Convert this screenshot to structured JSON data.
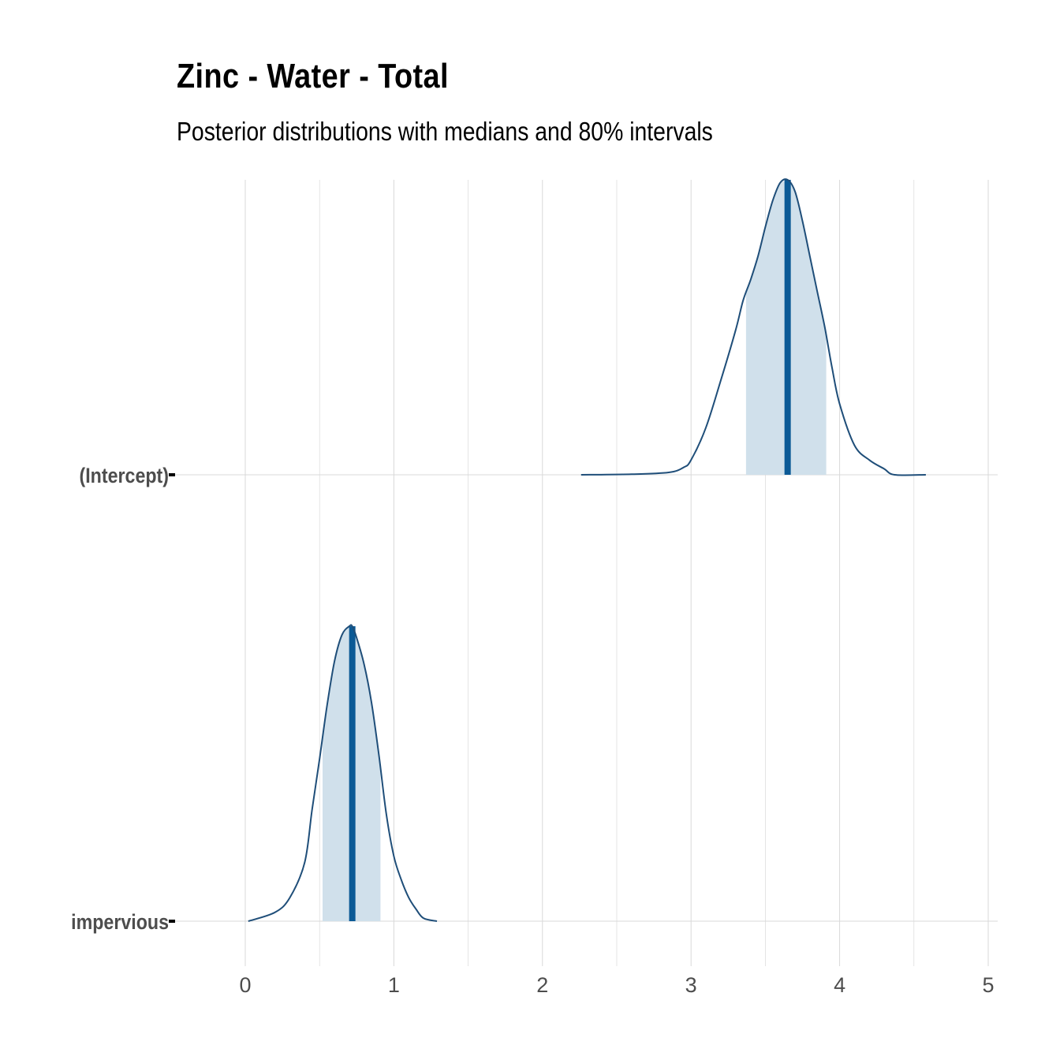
{
  "title": "Zinc - Water - Total",
  "subtitle": "Posterior distributions with medians and 80% intervals",
  "colors": {
    "outline": "#1f4e79",
    "median": "#0b5a96",
    "interval_fill": "#d0e0eb",
    "grid": "#d9d9d9",
    "tick_text": "#4d4d4d"
  },
  "chart_data": {
    "type": "area",
    "title": "Zinc - Water - Total",
    "subtitle": "Posterior distributions with medians and 80% intervals",
    "xlabel": "",
    "ylabel": "",
    "xlim": [
      0,
      5
    ],
    "x_ticks": [
      0,
      1,
      2,
      3,
      4,
      5
    ],
    "grid": true,
    "parameters": [
      {
        "name": "(Intercept)",
        "median": 3.65,
        "interval80": [
          3.37,
          3.91
        ],
        "density": {
          "x": [
            2.26,
            2.6,
            2.85,
            2.95,
            3.0,
            3.1,
            3.2,
            3.3,
            3.35,
            3.4,
            3.45,
            3.5,
            3.55,
            3.6,
            3.65,
            3.7,
            3.75,
            3.8,
            3.85,
            3.9,
            3.95,
            4.0,
            4.1,
            4.2,
            4.3,
            4.37,
            4.58
          ],
          "y": [
            0.0,
            0.002,
            0.008,
            0.025,
            0.05,
            0.16,
            0.32,
            0.49,
            0.59,
            0.66,
            0.74,
            0.84,
            0.93,
            0.99,
            1.0,
            0.96,
            0.86,
            0.74,
            0.62,
            0.5,
            0.36,
            0.24,
            0.1,
            0.05,
            0.02,
            0.0,
            0.0
          ]
        }
      },
      {
        "name": "impervious",
        "median": 0.72,
        "interval80": [
          0.52,
          0.91
        ],
        "density": {
          "x": [
            0.02,
            0.2,
            0.3,
            0.4,
            0.45,
            0.5,
            0.55,
            0.6,
            0.65,
            0.7,
            0.72,
            0.75,
            0.8,
            0.85,
            0.9,
            0.95,
            1.0,
            1.05,
            1.1,
            1.15,
            1.2,
            1.29
          ],
          "y": [
            0.0,
            0.03,
            0.08,
            0.2,
            0.38,
            0.55,
            0.73,
            0.88,
            0.97,
            1.0,
            1.0,
            0.96,
            0.87,
            0.74,
            0.56,
            0.36,
            0.22,
            0.14,
            0.08,
            0.04,
            0.01,
            0.0
          ]
        }
      }
    ]
  }
}
